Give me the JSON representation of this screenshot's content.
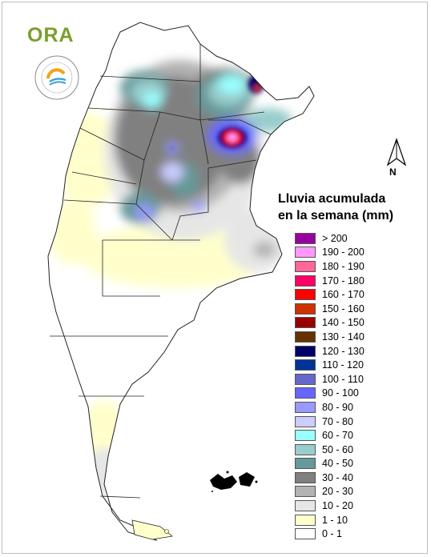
{
  "logo": {
    "text": "ORA",
    "seal_text": "SERVICIO METEOROLOGICO NACIONAL · ARGENTINA"
  },
  "north_arrow": {
    "label": "N"
  },
  "legend": {
    "title_line1": "Lluvia acumulada",
    "title_line2": "en la semana (mm)",
    "items": [
      {
        "label": "> 200",
        "color": "#9900a0"
      },
      {
        "label": "190 - 200",
        "color": "#ff99ff"
      },
      {
        "label": "180 - 190",
        "color": "#ff6699"
      },
      {
        "label": "170 - 180",
        "color": "#ff0066"
      },
      {
        "label": "160 - 170",
        "color": "#ff0000"
      },
      {
        "label": "150 - 160",
        "color": "#cc3300"
      },
      {
        "label": "140 - 150",
        "color": "#990000"
      },
      {
        "label": "130 - 140",
        "color": "#663300"
      },
      {
        "label": "120 - 130",
        "color": "#000066"
      },
      {
        "label": "110 - 120",
        "color": "#003399"
      },
      {
        "label": "100 - 110",
        "color": "#6666cc"
      },
      {
        "label": "90 - 100",
        "color": "#6666ff"
      },
      {
        "label": "80 - 90",
        "color": "#9999ff"
      },
      {
        "label": "70 - 80",
        "color": "#ccccff"
      },
      {
        "label": "60 - 70",
        "color": "#99ffff"
      },
      {
        "label": "50 - 60",
        "color": "#99cccc"
      },
      {
        "label": "40 - 50",
        "color": "#669999"
      },
      {
        "label": "30 - 40",
        "color": "#808080"
      },
      {
        "label": "20 - 30",
        "color": "#b3b3b3"
      },
      {
        "label": "10 - 20",
        "color": "#e6e6e6"
      },
      {
        "label": "1 - 10",
        "color": "#ffffcc"
      },
      {
        "label": "0 - 1",
        "color": "#ffffff"
      }
    ]
  }
}
